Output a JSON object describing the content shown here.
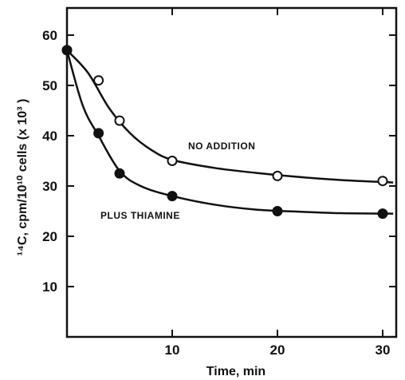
{
  "chart_data": {
    "type": "line",
    "xlabel": "Time, min",
    "ylabel": "¹⁴C, cpm/10¹⁰ cells (x 10³ )",
    "xlim": [
      0,
      32
    ],
    "ylim": [
      0,
      65
    ],
    "xticks": [
      10,
      20,
      30
    ],
    "yticks": [
      10,
      20,
      30,
      40,
      50,
      60
    ],
    "grid": false,
    "series": [
      {
        "name": "NO ADDITION",
        "marker": "open-circle",
        "x": [
          0,
          3,
          5,
          10,
          20,
          30
        ],
        "y": [
          57,
          51,
          43,
          35,
          32,
          31
        ],
        "curve": {
          "x": [
            0,
            2,
            4,
            6,
            8,
            10,
            14,
            18,
            22,
            26,
            31
          ],
          "y": [
            57,
            52.5,
            45.5,
            40.5,
            37.2,
            35.2,
            33.6,
            32.6,
            31.8,
            31.2,
            30.7
          ]
        }
      },
      {
        "name": "PLUS THIAMINE",
        "marker": "filled-circle",
        "x": [
          0,
          3,
          5,
          10,
          20,
          30
        ],
        "y": [
          57,
          40.5,
          32.5,
          28,
          25,
          24.5
        ],
        "curve": {
          "x": [
            0,
            1.5,
            3,
            5,
            7,
            10,
            14,
            18,
            22,
            26,
            31
          ],
          "y": [
            57,
            46,
            40,
            33,
            30,
            28,
            26.3,
            25.3,
            24.9,
            24.6,
            24.5
          ]
        }
      }
    ]
  }
}
